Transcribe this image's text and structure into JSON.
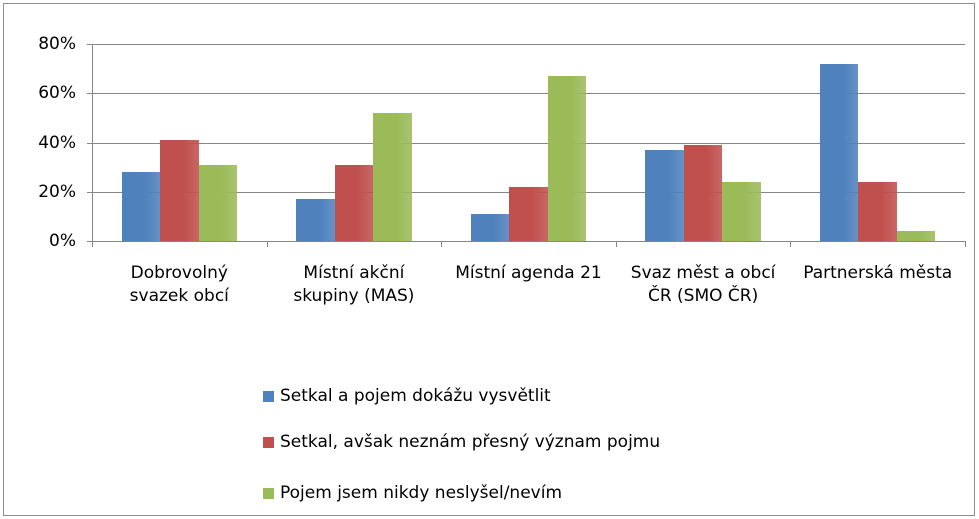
{
  "chart_data": {
    "type": "bar",
    "categories": [
      "Dobrovolný svazek obcí",
      "Místní akční skupiny (MAS)",
      "Místní agenda 21",
      "Svaz měst a obcí ČR (SMO ČR)",
      "Partnerská města"
    ],
    "series": [
      {
        "name": "Setkal a pojem dokážu vysvětlit",
        "color": "#4f81bd",
        "values": [
          28,
          17,
          11,
          37,
          72
        ]
      },
      {
        "name": "Setkal, avšak neznám přesný význam pojmu",
        "color": "#c0504d",
        "values": [
          41,
          31,
          22,
          39,
          24
        ]
      },
      {
        "name": "Pojem jsem nikdy neslyšel/nevím",
        "color": "#9bbb59",
        "values": [
          31,
          52,
          67,
          24,
          4
        ]
      }
    ],
    "ylim": [
      0,
      80
    ],
    "yticks": [
      {
        "value": 0,
        "label": "0%"
      },
      {
        "value": 20,
        "label": "20%"
      },
      {
        "value": 40,
        "label": "40%"
      },
      {
        "value": 60,
        "label": "60%"
      },
      {
        "value": 80,
        "label": "80%"
      }
    ],
    "grid": true,
    "legend": "bottom"
  }
}
